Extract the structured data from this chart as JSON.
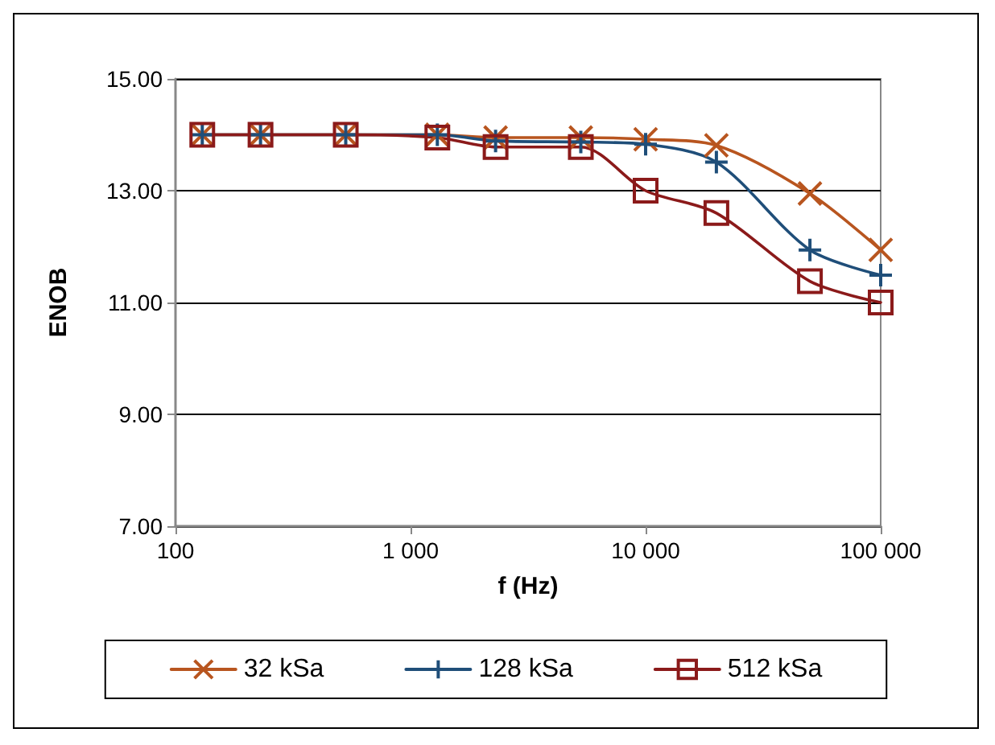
{
  "chart_data": {
    "type": "line",
    "xlabel": "f (Hz)",
    "ylabel": "ENOB",
    "x": [
      130,
      230,
      530,
      1300,
      2300,
      5300,
      10000,
      20000,
      50000,
      100000
    ],
    "series": [
      {
        "name": "32 kSa",
        "color": "#b8551f",
        "marker": "cross",
        "values": [
          14,
          14,
          14,
          14,
          13.95,
          13.95,
          13.92,
          13.81,
          12.95,
          11.94
        ]
      },
      {
        "name": "128 kSa",
        "color": "#1f4e79",
        "marker": "plus",
        "values": [
          14,
          14,
          14,
          14,
          13.89,
          13.87,
          13.83,
          13.51,
          11.94,
          11.49
        ]
      },
      {
        "name": "512 kSa",
        "color": "#8b1a1a",
        "marker": "square",
        "values": [
          14,
          14,
          14,
          13.95,
          13.78,
          13.78,
          13.0,
          12.6,
          11.38,
          11.0
        ]
      }
    ],
    "log": "x",
    "xlim": [
      100,
      100000
    ],
    "xticks": [
      {
        "value": 100,
        "label": "100"
      },
      {
        "value": 1000,
        "label": "1 000"
      },
      {
        "value": 10000,
        "label": "10 000"
      },
      {
        "value": 100000,
        "label": "100 000"
      }
    ],
    "ylim": [
      7,
      15
    ],
    "yticks": [
      {
        "value": 7,
        "label": "7.00"
      },
      {
        "value": 9,
        "label": "9.00"
      },
      {
        "value": 11,
        "label": "11.00"
      },
      {
        "value": 13,
        "label": "13.00"
      },
      {
        "value": 15,
        "label": "15.00"
      }
    ],
    "grid": "y",
    "legend": "bottom"
  }
}
